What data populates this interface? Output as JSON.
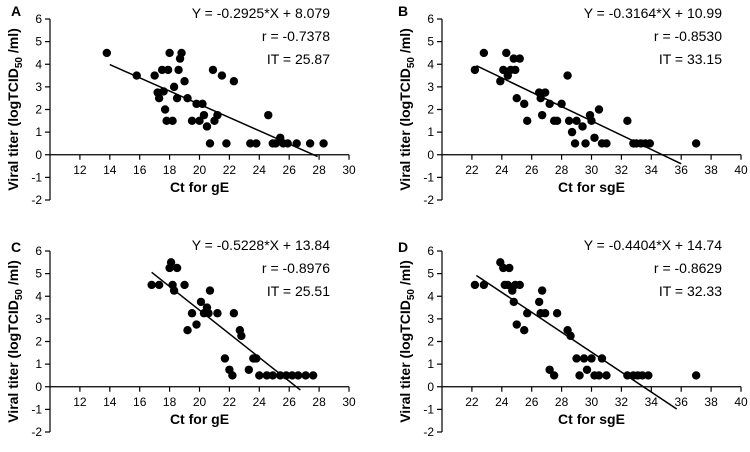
{
  "chart_data": [
    {
      "type": "scatter",
      "panel_label": "A",
      "xlabel": "Ct for gE",
      "ylabel_main": "Viral titer (logTCID",
      "ylabel_sub": "50",
      "ylabel_tail": " /ml)",
      "xlim": [
        10,
        30
      ],
      "ylim": [
        -2,
        6
      ],
      "xticks": [
        12,
        14,
        16,
        18,
        20,
        22,
        24,
        26,
        28,
        30
      ],
      "yticks": [
        -2,
        -1,
        0,
        1,
        2,
        3,
        4,
        5,
        6
      ],
      "annotations": [
        "Y = -0.2925*X + 8.079",
        "r = -0.7378",
        "IT = 25.87"
      ],
      "fit": {
        "slope": -0.2925,
        "intercept": 8.079,
        "x_range": [
          14.0,
          27.9
        ]
      },
      "points": [
        [
          13.8,
          4.5
        ],
        [
          15.8,
          3.5
        ],
        [
          17.0,
          3.5
        ],
        [
          17.2,
          2.75
        ],
        [
          17.3,
          2.5
        ],
        [
          17.5,
          3.75
        ],
        [
          17.6,
          2.8
        ],
        [
          17.7,
          2.0
        ],
        [
          17.8,
          1.5
        ],
        [
          17.9,
          3.75
        ],
        [
          18.0,
          4.5
        ],
        [
          18.2,
          1.5
        ],
        [
          18.3,
          3.0
        ],
        [
          18.5,
          2.5
        ],
        [
          18.6,
          3.75
        ],
        [
          18.7,
          4.25
        ],
        [
          18.8,
          4.5
        ],
        [
          19.0,
          3.25
        ],
        [
          19.2,
          2.5
        ],
        [
          19.5,
          1.5
        ],
        [
          19.8,
          2.25
        ],
        [
          20.0,
          1.5
        ],
        [
          20.2,
          2.25
        ],
        [
          20.3,
          1.75
        ],
        [
          20.5,
          1.25
        ],
        [
          20.7,
          0.5
        ],
        [
          20.9,
          3.75
        ],
        [
          21.0,
          1.5
        ],
        [
          21.2,
          1.75
        ],
        [
          21.5,
          3.5
        ],
        [
          21.8,
          0.5
        ],
        [
          22.3,
          3.25
        ],
        [
          23.4,
          0.5
        ],
        [
          23.8,
          0.5
        ],
        [
          24.6,
          1.75
        ],
        [
          24.9,
          0.5
        ],
        [
          25.1,
          0.5
        ],
        [
          25.4,
          0.75
        ],
        [
          25.6,
          0.5
        ],
        [
          25.9,
          0.5
        ],
        [
          26.5,
          0.5
        ],
        [
          27.4,
          0.5
        ],
        [
          28.3,
          0.5
        ]
      ]
    },
    {
      "type": "scatter",
      "panel_label": "B",
      "xlabel": "Ct for sgE",
      "ylabel_main": "Viral titer (logTCID",
      "ylabel_sub": "50",
      "ylabel_tail": " /ml)",
      "xlim": [
        20,
        40
      ],
      "ylim": [
        -2,
        6
      ],
      "xticks": [
        22,
        24,
        26,
        28,
        30,
        32,
        34,
        36,
        38,
        40
      ],
      "yticks": [
        -2,
        -1,
        0,
        1,
        2,
        3,
        4,
        5,
        6
      ],
      "annotations": [
        "Y = -0.3164*X + 10.99",
        "r = -0.8530",
        "IT = 33.15"
      ],
      "fit": {
        "slope": -0.3164,
        "intercept": 10.99,
        "x_range": [
          22.3,
          36.0
        ]
      },
      "points": [
        [
          22.2,
          3.75
        ],
        [
          22.8,
          4.5
        ],
        [
          23.9,
          3.25
        ],
        [
          24.1,
          3.75
        ],
        [
          24.3,
          4.5
        ],
        [
          24.4,
          3.5
        ],
        [
          24.6,
          3.75
        ],
        [
          24.8,
          4.25
        ],
        [
          24.9,
          3.75
        ],
        [
          25.0,
          2.5
        ],
        [
          25.2,
          4.25
        ],
        [
          25.5,
          2.25
        ],
        [
          25.7,
          1.5
        ],
        [
          26.5,
          2.75
        ],
        [
          26.6,
          2.5
        ],
        [
          26.7,
          1.75
        ],
        [
          26.9,
          2.75
        ],
        [
          27.2,
          2.25
        ],
        [
          27.5,
          1.5
        ],
        [
          27.7,
          1.5
        ],
        [
          28.0,
          2.25
        ],
        [
          28.4,
          3.5
        ],
        [
          28.5,
          1.5
        ],
        [
          28.7,
          1.0
        ],
        [
          28.9,
          0.5
        ],
        [
          29.0,
          1.5
        ],
        [
          29.4,
          1.25
        ],
        [
          29.6,
          0.5
        ],
        [
          29.9,
          1.75
        ],
        [
          30.0,
          1.5
        ],
        [
          30.2,
          0.75
        ],
        [
          30.5,
          2.0
        ],
        [
          30.7,
          0.5
        ],
        [
          31.0,
          0.5
        ],
        [
          32.4,
          1.5
        ],
        [
          32.8,
          0.5
        ],
        [
          33.0,
          0.5
        ],
        [
          33.3,
          0.5
        ],
        [
          33.6,
          0.5
        ],
        [
          33.9,
          0.5
        ],
        [
          37.0,
          0.5
        ]
      ]
    },
    {
      "type": "scatter",
      "panel_label": "C",
      "xlabel": "Ct for gE",
      "ylabel_main": "Viral titer (logTCID",
      "ylabel_sub": "50",
      "ylabel_tail": " /ml)",
      "xlim": [
        10,
        30
      ],
      "ylim": [
        -2,
        6
      ],
      "xticks": [
        12,
        14,
        16,
        18,
        20,
        22,
        24,
        26,
        28,
        30
      ],
      "yticks": [
        -2,
        -1,
        0,
        1,
        2,
        3,
        4,
        5,
        6
      ],
      "annotations": [
        "Y = -0.5228*X + 13.84",
        "r = -0.8976",
        "IT = 25.51"
      ],
      "fit": {
        "slope": -0.5228,
        "intercept": 13.84,
        "x_range": [
          16.8,
          26.75
        ]
      },
      "points": [
        [
          16.8,
          4.5
        ],
        [
          17.3,
          4.5
        ],
        [
          18.0,
          5.25
        ],
        [
          18.1,
          5.5
        ],
        [
          18.2,
          4.5
        ],
        [
          18.3,
          4.25
        ],
        [
          18.5,
          5.25
        ],
        [
          19.0,
          4.5
        ],
        [
          19.2,
          2.5
        ],
        [
          19.5,
          3.25
        ],
        [
          19.8,
          2.75
        ],
        [
          20.1,
          3.75
        ],
        [
          20.3,
          3.25
        ],
        [
          20.5,
          3.5
        ],
        [
          20.6,
          3.25
        ],
        [
          20.7,
          4.25
        ],
        [
          21.2,
          3.25
        ],
        [
          21.7,
          1.25
        ],
        [
          22.0,
          0.75
        ],
        [
          22.2,
          0.5
        ],
        [
          22.3,
          3.25
        ],
        [
          22.7,
          2.5
        ],
        [
          22.8,
          2.25
        ],
        [
          23.3,
          0.75
        ],
        [
          23.6,
          1.25
        ],
        [
          23.8,
          1.25
        ],
        [
          24.0,
          0.5
        ],
        [
          24.5,
          0.5
        ],
        [
          24.9,
          0.5
        ],
        [
          25.4,
          0.5
        ],
        [
          25.8,
          0.5
        ],
        [
          26.2,
          0.5
        ],
        [
          26.6,
          0.5
        ],
        [
          27.1,
          0.5
        ],
        [
          27.6,
          0.5
        ]
      ]
    },
    {
      "type": "scatter",
      "panel_label": "D",
      "xlabel": "Ct for sgE",
      "ylabel_main": "Viral titer (logTCID",
      "ylabel_sub": "50",
      "ylabel_tail": " /ml)",
      "xlim": [
        20,
        40
      ],
      "ylim": [
        -2,
        6
      ],
      "xticks": [
        22,
        24,
        26,
        28,
        30,
        32,
        34,
        36,
        38,
        40
      ],
      "yticks": [
        -2,
        -1,
        0,
        1,
        2,
        3,
        4,
        5,
        6
      ],
      "annotations": [
        "Y = -0.4404*X + 14.74",
        "r = -0.8629",
        "IT = 32.33"
      ],
      "fit": {
        "slope": -0.4404,
        "intercept": 14.74,
        "x_range": [
          22.3,
          35.7
        ]
      },
      "points": [
        [
          22.2,
          4.5
        ],
        [
          22.8,
          4.5
        ],
        [
          23.9,
          5.5
        ],
        [
          24.1,
          5.25
        ],
        [
          24.2,
          4.5
        ],
        [
          24.4,
          4.5
        ],
        [
          24.5,
          5.25
        ],
        [
          24.7,
          4.25
        ],
        [
          24.8,
          3.75
        ],
        [
          24.9,
          4.5
        ],
        [
          25.0,
          2.75
        ],
        [
          25.2,
          4.5
        ],
        [
          25.5,
          2.5
        ],
        [
          25.7,
          3.25
        ],
        [
          26.5,
          3.75
        ],
        [
          26.6,
          3.25
        ],
        [
          26.7,
          4.25
        ],
        [
          26.9,
          3.25
        ],
        [
          27.2,
          0.75
        ],
        [
          27.5,
          0.5
        ],
        [
          27.7,
          3.25
        ],
        [
          28.4,
          2.5
        ],
        [
          28.6,
          2.25
        ],
        [
          29.0,
          1.25
        ],
        [
          29.2,
          0.5
        ],
        [
          29.5,
          1.25
        ],
        [
          29.7,
          0.75
        ],
        [
          30.0,
          1.25
        ],
        [
          30.2,
          0.5
        ],
        [
          30.5,
          0.5
        ],
        [
          30.7,
          1.25
        ],
        [
          31.0,
          0.5
        ],
        [
          32.4,
          0.5
        ],
        [
          32.8,
          0.5
        ],
        [
          33.1,
          0.5
        ],
        [
          33.4,
          0.5
        ],
        [
          33.8,
          0.5
        ],
        [
          37.0,
          0.5
        ]
      ]
    }
  ]
}
